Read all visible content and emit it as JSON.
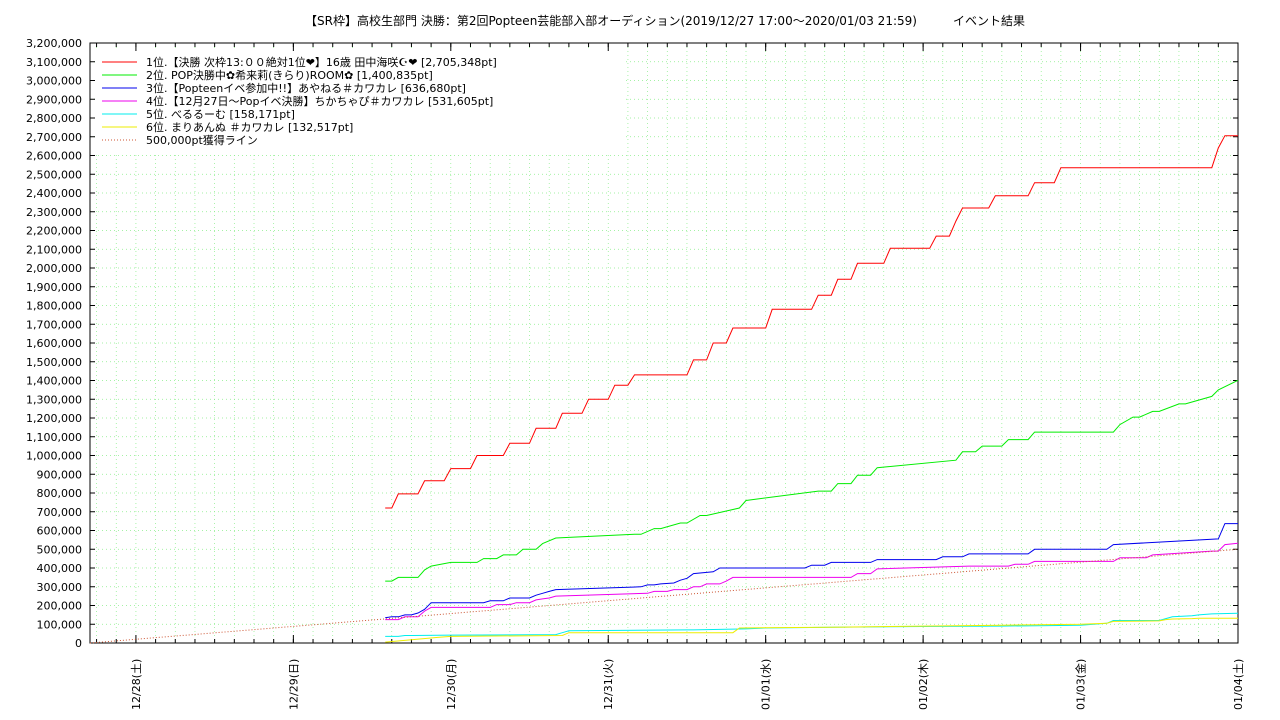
{
  "chart_data": {
    "type": "line",
    "title": "【SR枠】高校生部門 決勝：第2回Popteen芸能部入部オーディション(2019/12/27 17:00～2020/01/03 21:59)　　　イベント結果",
    "ylim": [
      0,
      3200000
    ],
    "xlim": [
      "2019-12-27T17:00",
      "2020-01-04T00:00"
    ],
    "y_ticks": [
      "0",
      "100,000",
      "200,000",
      "300,000",
      "400,000",
      "500,000",
      "600,000",
      "700,000",
      "800,000",
      "900,000",
      "1,000,000",
      "1,100,000",
      "1,200,000",
      "1,300,000",
      "1,400,000",
      "1,500,000",
      "1,600,000",
      "1,700,000",
      "1,800,000",
      "1,900,000",
      "2,000,000",
      "2,100,000",
      "2,200,000",
      "2,300,000",
      "2,400,000",
      "2,500,000",
      "2,600,000",
      "2,700,000",
      "2,800,000",
      "2,900,000",
      "3,000,000",
      "3,100,000",
      "3,200,000"
    ],
    "x_ticks": [
      "12/28(土)",
      "12/29(日)",
      "12/30(月)",
      "12/31(火)",
      "01/01(水)",
      "01/02(木)",
      "01/03(金)",
      "01/04(土)"
    ],
    "grid": true,
    "legend_position": "top-left",
    "series": [
      {
        "name": "1位.【決勝 次枠13:００絶対1位❤】16歳 田中海咲☪❤ [2,705,348pt]",
        "color": "#ff0000",
        "style": "solid",
        "x": [
          "2019-12-29T14:00",
          "2019-12-29T15:00",
          "2019-12-29T16:00",
          "2019-12-29T19:00",
          "2019-12-29T20:00",
          "2019-12-29T23:00",
          "2019-12-30T00:00",
          "2019-12-30T03:00",
          "2019-12-30T04:00",
          "2019-12-30T08:00",
          "2019-12-30T09:00",
          "2019-12-30T12:00",
          "2019-12-30T13:00",
          "2019-12-30T16:00",
          "2019-12-30T17:00",
          "2019-12-30T20:00",
          "2019-12-30T21:00",
          "2019-12-31T00:00",
          "2019-12-31T01:00",
          "2019-12-31T03:00",
          "2019-12-31T04:00",
          "2019-12-31T08:00",
          "2019-12-31T12:00",
          "2019-12-31T13:00",
          "2019-12-31T15:00",
          "2019-12-31T16:00",
          "2019-12-31T18:00",
          "2019-12-31T19:00",
          "2020-01-01T00:00",
          "2020-01-01T01:00",
          "2020-01-01T07:00",
          "2020-01-01T08:00",
          "2020-01-01T10:00",
          "2020-01-01T11:00",
          "2020-01-01T13:00",
          "2020-01-01T14:00",
          "2020-01-01T18:00",
          "2020-01-01T19:00",
          "2020-01-02T01:00",
          "2020-01-02T02:00",
          "2020-01-02T04:00",
          "2020-01-02T05:00",
          "2020-01-02T06:00",
          "2020-01-02T10:00",
          "2020-01-02T11:00",
          "2020-01-02T16:00",
          "2020-01-02T17:00",
          "2020-01-02T20:00",
          "2020-01-02T21:00",
          "2020-01-03T04:00",
          "2020-01-03T05:00",
          "2020-01-03T07:00",
          "2020-01-03T08:00",
          "2020-01-03T20:00",
          "2020-01-03T21:00",
          "2020-01-03T22:00",
          "2020-01-04T00:00"
        ],
        "y": [
          720000,
          720000,
          795000,
          795000,
          865000,
          865000,
          930000,
          930000,
          1000000,
          1000000,
          1065000,
          1065000,
          1145000,
          1145000,
          1225000,
          1225000,
          1300000,
          1300000,
          1375000,
          1375000,
          1430000,
          1430000,
          1430000,
          1510000,
          1510000,
          1600000,
          1600000,
          1680000,
          1680000,
          1780000,
          1780000,
          1855000,
          1855000,
          1940000,
          1940000,
          2025000,
          2025000,
          2105000,
          2105000,
          2170000,
          2170000,
          2250000,
          2320000,
          2320000,
          2385000,
          2385000,
          2455000,
          2455000,
          2535000,
          2535000,
          2535000,
          2535000,
          2535000,
          2535000,
          2640000,
          2705348,
          2705348
        ]
      },
      {
        "name": "2位. POP決勝中✿希来莉(きらり)ROOM✿ [1,400,835pt]",
        "color": "#00ee00",
        "style": "solid",
        "x": [
          "2019-12-29T14:00",
          "2019-12-29T15:00",
          "2019-12-29T16:00",
          "2019-12-29T19:00",
          "2019-12-29T20:00",
          "2019-12-29T21:00",
          "2019-12-30T00:00",
          "2019-12-30T04:00",
          "2019-12-30T05:00",
          "2019-12-30T07:00",
          "2019-12-30T08:00",
          "2019-12-30T10:00",
          "2019-12-30T11:00",
          "2019-12-30T13:00",
          "2019-12-30T14:00",
          "2019-12-30T16:00",
          "2019-12-31T04:00",
          "2019-12-31T05:00",
          "2019-12-31T07:00",
          "2019-12-31T08:00",
          "2019-12-31T11:00",
          "2019-12-31T12:00",
          "2019-12-31T14:00",
          "2019-12-31T15:00",
          "2019-12-31T20:00",
          "2019-12-31T21:00",
          "2020-01-01T08:00",
          "2020-01-01T09:00",
          "2020-01-01T10:00",
          "2020-01-01T11:00",
          "2020-01-01T13:00",
          "2020-01-01T14:00",
          "2020-01-01T16:00",
          "2020-01-01T17:00",
          "2020-01-02T05:00",
          "2020-01-02T06:00",
          "2020-01-02T08:00",
          "2020-01-02T09:00",
          "2020-01-02T12:00",
          "2020-01-02T13:00",
          "2020-01-02T16:00",
          "2020-01-02T17:00",
          "2020-01-03T05:00",
          "2020-01-03T06:00",
          "2020-01-03T08:00",
          "2020-01-03T09:00",
          "2020-01-03T11:00",
          "2020-01-03T12:00",
          "2020-01-03T15:00",
          "2020-01-03T16:00",
          "2020-01-03T20:00",
          "2020-01-03T21:00",
          "2020-01-04T00:00"
        ],
        "y": [
          330000,
          330000,
          350000,
          350000,
          390000,
          410000,
          430000,
          430000,
          450000,
          450000,
          470000,
          470000,
          500000,
          500000,
          530000,
          560000,
          580000,
          580000,
          610000,
          610000,
          640000,
          640000,
          680000,
          680000,
          720000,
          760000,
          810000,
          810000,
          810000,
          850000,
          850000,
          895000,
          895000,
          935000,
          975000,
          1020000,
          1020000,
          1050000,
          1050000,
          1085000,
          1085000,
          1125000,
          1125000,
          1165000,
          1205000,
          1205000,
          1235000,
          1235000,
          1275000,
          1275000,
          1315000,
          1350000,
          1400835
        ]
      },
      {
        "name": "3位.【Popteenイベ参加中!!】あやねる＃カワカレ [636,680pt]",
        "color": "#0000ee",
        "style": "solid",
        "x": [
          "2019-12-29T14:00",
          "2019-12-29T15:00",
          "2019-12-29T16:00",
          "2019-12-29T17:00",
          "2019-12-29T18:00",
          "2019-12-29T19:00",
          "2019-12-29T20:00",
          "2019-12-29T21:00",
          "2019-12-30T00:00",
          "2019-12-30T05:00",
          "2019-12-30T06:00",
          "2019-12-30T08:00",
          "2019-12-30T09:00",
          "2019-12-30T12:00",
          "2019-12-30T13:00",
          "2019-12-30T14:00",
          "2019-12-30T15:00",
          "2019-12-30T16:00",
          "2019-12-31T05:00",
          "2019-12-31T06:00",
          "2019-12-31T07:00",
          "2019-12-31T08:00",
          "2019-12-31T10:00",
          "2019-12-31T11:00",
          "2019-12-31T12:00",
          "2019-12-31T13:00",
          "2019-12-31T16:00",
          "2019-12-31T17:00",
          "2020-01-01T06:00",
          "2020-01-01T07:00",
          "2020-01-01T09:00",
          "2020-01-01T10:00",
          "2020-01-01T16:00",
          "2020-01-01T17:00",
          "2020-01-02T02:00",
          "2020-01-02T03:00",
          "2020-01-02T06:00",
          "2020-01-02T07:00",
          "2020-01-02T16:00",
          "2020-01-02T17:00",
          "2020-01-03T04:00",
          "2020-01-03T05:00",
          "2020-01-03T21:00",
          "2020-01-03T22:00",
          "2020-01-04T00:00"
        ],
        "y": [
          135000,
          140000,
          140000,
          150000,
          150000,
          160000,
          180000,
          215000,
          215000,
          215000,
          225000,
          225000,
          240000,
          240000,
          255000,
          265000,
          275000,
          285000,
          300000,
          310000,
          310000,
          315000,
          320000,
          335000,
          345000,
          370000,
          380000,
          400000,
          400000,
          415000,
          415000,
          430000,
          430000,
          445000,
          445000,
          460000,
          460000,
          475000,
          475000,
          500000,
          500000,
          525000,
          555000,
          636680,
          636680
        ]
      },
      {
        "name": "4位.【12月27日～Popイベ決勝】ちかちゃぴ＃カワカレ [531,605pt]",
        "color": "#ee00ee",
        "style": "solid",
        "x": [
          "2019-12-29T14:00",
          "2019-12-29T16:00",
          "2019-12-29T17:00",
          "2019-12-29T19:00",
          "2019-12-29T20:00",
          "2019-12-29T21:00",
          "2019-12-30T00:00",
          "2019-12-30T06:00",
          "2019-12-30T07:00",
          "2019-12-30T09:00",
          "2019-12-30T10:00",
          "2019-12-30T12:00",
          "2019-12-30T13:00",
          "2019-12-30T14:00",
          "2019-12-30T15:00",
          "2019-12-30T16:00",
          "2019-12-31T06:00",
          "2019-12-31T07:00",
          "2019-12-31T09:00",
          "2019-12-31T10:00",
          "2019-12-31T12:00",
          "2019-12-31T13:00",
          "2019-12-31T14:00",
          "2019-12-31T15:00",
          "2019-12-31T17:00",
          "2019-12-31T18:00",
          "2019-12-31T19:00",
          "2020-01-01T04:00",
          "2020-01-01T05:00",
          "2020-01-01T13:00",
          "2020-01-01T14:00",
          "2020-01-01T16:00",
          "2020-01-01T17:00",
          "2020-01-02T07:00",
          "2020-01-02T08:00",
          "2020-01-02T13:00",
          "2020-01-02T14:00",
          "2020-01-02T16:00",
          "2020-01-02T17:00",
          "2020-01-03T05:00",
          "2020-01-03T06:00",
          "2020-01-03T10:00",
          "2020-01-03T11:00",
          "2020-01-03T20:00",
          "2020-01-03T21:00",
          "2020-01-03T22:00",
          "2020-01-04T00:00"
        ],
        "y": [
          125000,
          125000,
          140000,
          140000,
          170000,
          190000,
          190000,
          190000,
          205000,
          205000,
          215000,
          215000,
          230000,
          235000,
          240000,
          250000,
          265000,
          275000,
          275000,
          285000,
          285000,
          300000,
          300000,
          315000,
          315000,
          330000,
          350000,
          350000,
          350000,
          350000,
          370000,
          370000,
          395000,
          410000,
          410000,
          410000,
          420000,
          420000,
          435000,
          435000,
          455000,
          455000,
          470000,
          490000,
          490000,
          525000,
          531605
        ]
      },
      {
        "name": "5位. べるるーむ [158,171pt]",
        "color": "#00eeee",
        "style": "solid",
        "x": [
          "2019-12-29T14:00",
          "2019-12-29T15:00",
          "2019-12-29T16:00",
          "2019-12-29T17:00",
          "2019-12-29T18:00",
          "2019-12-30T00:00",
          "2019-12-30T16:00",
          "2019-12-30T17:00",
          "2019-12-30T18:00",
          "2019-12-31T12:00",
          "2019-12-31T13:00",
          "2019-12-31T21:00",
          "2020-01-01T00:00",
          "2020-01-01T12:00",
          "2020-01-02T00:00",
          "2020-01-02T12:00",
          "2020-01-03T00:00",
          "2020-01-03T04:00",
          "2020-01-03T05:00",
          "2020-01-03T12:00",
          "2020-01-03T13:00",
          "2020-01-03T14:00",
          "2020-01-03T17:00",
          "2020-01-03T18:00",
          "2020-01-03T20:00",
          "2020-01-04T00:00"
        ],
        "y": [
          35000,
          35000,
          35000,
          40000,
          40000,
          42000,
          45000,
          55000,
          65000,
          70000,
          70000,
          75000,
          80000,
          85000,
          88000,
          90000,
          95000,
          105000,
          120000,
          120000,
          130000,
          140000,
          145000,
          150000,
          155000,
          158171
        ]
      },
      {
        "name": "6位. まりあんぬ ＃カワカレ [132,517pt]",
        "color": "#eeee00",
        "style": "solid",
        "x": [
          "2019-12-29T14:00",
          "2019-12-29T22:00",
          "2019-12-30T00:00",
          "2019-12-30T17:00",
          "2019-12-30T18:00",
          "2019-12-31T19:00",
          "2019-12-31T20:00",
          "2020-01-01T12:00",
          "2020-01-02T00:00",
          "2020-01-02T12:00",
          "2020-01-03T00:00",
          "2020-01-03T04:00",
          "2020-01-03T05:00",
          "2020-01-03T12:00",
          "2020-01-03T13:00",
          "2020-01-03T14:00",
          "2020-01-03T17:00",
          "2020-01-03T18:00",
          "2020-01-04T00:00"
        ],
        "y": [
          5000,
          30000,
          35000,
          40000,
          55000,
          55000,
          80000,
          85000,
          90000,
          95000,
          100000,
          105000,
          115000,
          118000,
          125000,
          128000,
          130000,
          132000,
          132517
        ]
      },
      {
        "name": "500,000pt獲得ライン",
        "color": "#cc5533",
        "style": "dotted",
        "x": [
          "2019-12-27T17:00",
          "2020-01-04T00:00"
        ],
        "y": [
          0,
          500000
        ]
      }
    ]
  }
}
